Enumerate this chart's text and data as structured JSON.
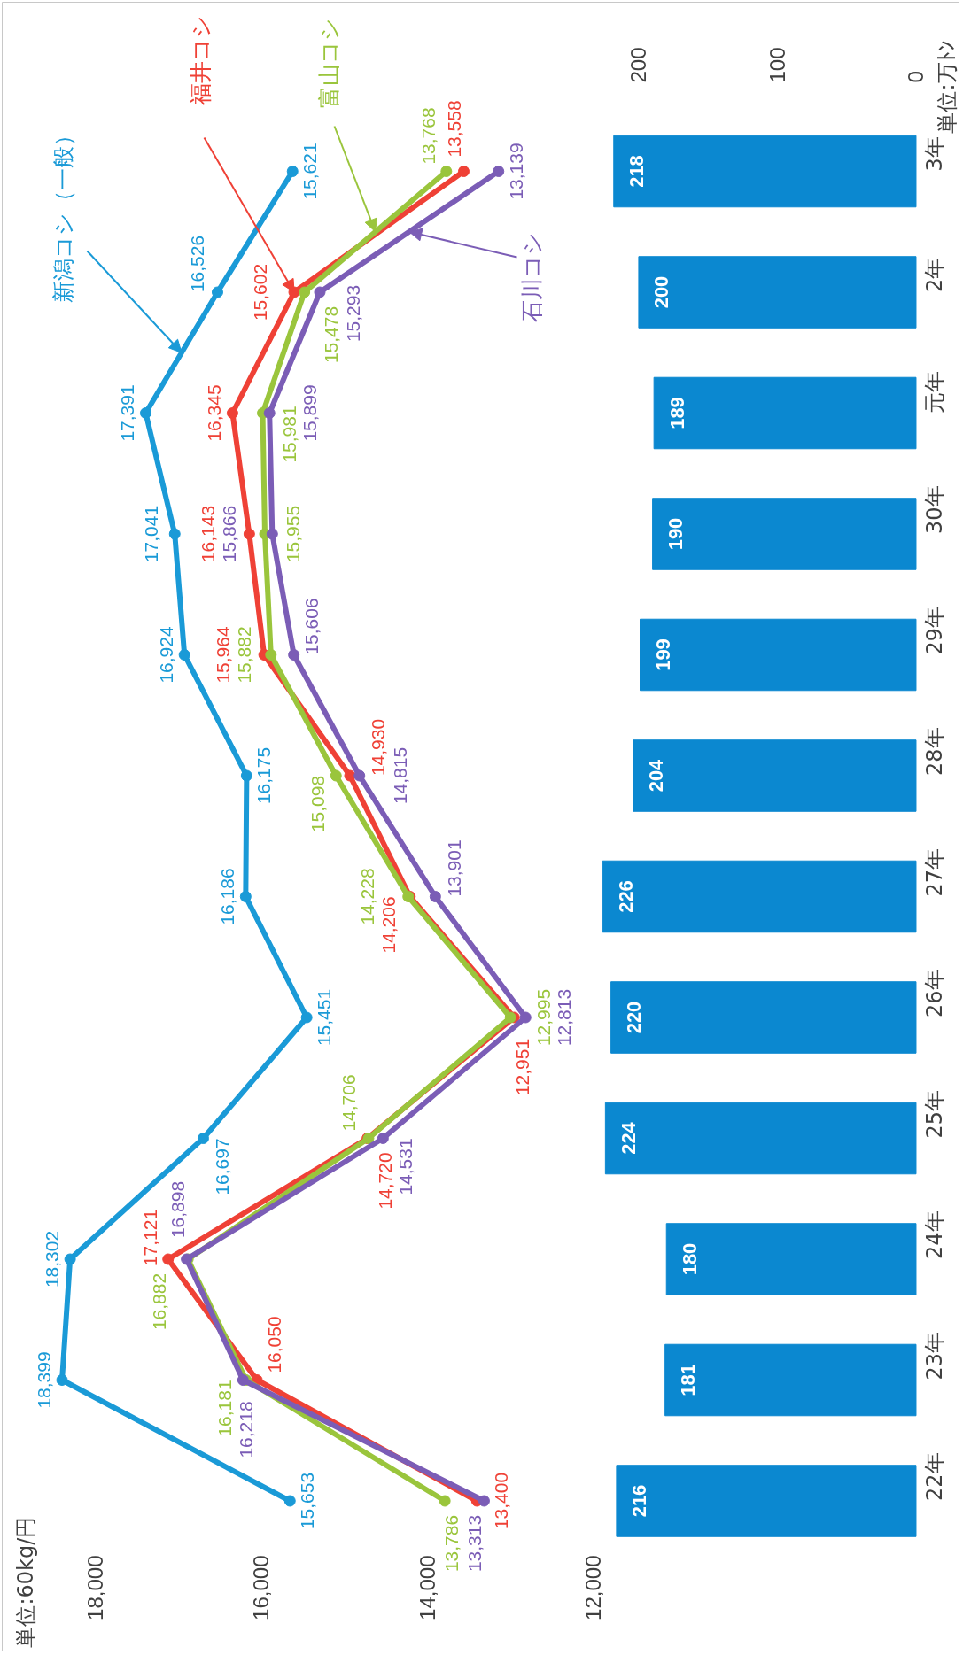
{
  "chart_data": {
    "type": "bar",
    "orientation": "horizontal",
    "categories": [
      "3年",
      "2年",
      "元年",
      "30年",
      "29年",
      "28年",
      "27年",
      "26年",
      "25年",
      "24年",
      "23年",
      "22年"
    ],
    "x2label": "単位:万ﾄﾝ",
    "annotations": [
      "単位:60kg/円"
    ],
    "xlim": [
      19120,
      7590
    ],
    "xticks": [
      {
        "value": 18000,
        "label": "18,000"
      },
      {
        "value": 16000,
        "label": "16,000"
      },
      {
        "value": 14000,
        "label": "14,000"
      },
      {
        "value": 12000,
        "label": "12,000"
      }
    ],
    "x2lim": [
      659,
      -31
    ],
    "x2ticks": [
      200,
      100,
      0
    ],
    "marker": "circle",
    "line_style": "solid",
    "series": [
      {
        "axis": "x2",
        "color": "#0b88d0",
        "values": [
          218,
          200,
          189,
          190,
          199,
          204,
          226,
          220,
          224,
          180,
          181,
          216
        ],
        "value_labels": [
          "218",
          "200",
          "189",
          "190",
          "199",
          "204",
          "226",
          "220",
          "224",
          "180",
          "181",
          "216"
        ]
      },
      {
        "type": "line",
        "name": "新潟コシ（一般）",
        "color": "#1a9ad7",
        "values": [
          15621,
          16526,
          17391,
          17041,
          16924,
          16175,
          16186,
          15451,
          16697,
          18302,
          18399,
          15653
        ],
        "value_labels": [
          "15,621",
          "16,526",
          "17,391",
          "17,041",
          "16,924",
          "16,175",
          "16,186",
          "15,451",
          "16,697",
          "18,302",
          "18,399",
          "15,653"
        ]
      },
      {
        "type": "line",
        "name": "福井コシ",
        "color": "#ef4136",
        "values": [
          13558,
          15602,
          16345,
          16143,
          15964,
          14930,
          14206,
          12951,
          14720,
          17121,
          16050,
          13400
        ],
        "value_labels": [
          "13,558",
          "15,602",
          "16,345",
          "16,143",
          "15,964",
          "14,930",
          "14,206",
          "12,951",
          "14,720",
          "17,121",
          "16,050",
          "13,400"
        ]
      },
      {
        "type": "line",
        "name": "富山コシ",
        "color": "#9ac53c",
        "values": [
          13768,
          15478,
          15981,
          15955,
          15882,
          15098,
          14228,
          12995,
          14706,
          16882,
          16181,
          13786
        ],
        "value_labels": [
          "13,768",
          "15,478",
          "15,981",
          "15,955",
          "15,882",
          "15,098",
          "14,228",
          "12,995",
          "14,706",
          "16,882",
          "16,181",
          "13,786"
        ]
      },
      {
        "type": "line",
        "name": "石川コシ",
        "color": "#7b5db6",
        "values": [
          13139,
          15293,
          15899,
          15866,
          15606,
          14815,
          13901,
          12813,
          14531,
          16898,
          16218,
          13313
        ],
        "value_labels": [
          "13,139",
          "15,293",
          "15,899",
          "15,866",
          "15,606",
          "14,815",
          "13,901",
          "12,813",
          "14,531",
          "16,898",
          "16,218",
          "13,313"
        ]
      }
    ]
  }
}
